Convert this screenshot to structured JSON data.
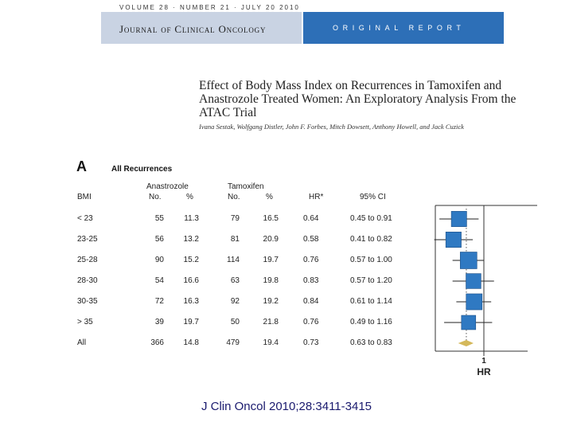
{
  "masthead": {
    "meta": "VOLUME 28 · NUMBER 21 · JULY 20 2010",
    "journal": "Journal of Clinical Oncology",
    "section": "ORIGINAL REPORT",
    "colors": {
      "journal_box": "#c9d3e3",
      "report_box": "#2d6fb7"
    }
  },
  "article": {
    "title": "Effect of Body Mass Index on Recurrences in Tamoxifen and Anastrozole Treated Women: An Exploratory Analysis From the ATAC Trial",
    "authors": "Ivana Sestak, Wolfgang Distler, John F. Forbes, Mitch Dowsett, Anthony Howell, and Jack Cuzick"
  },
  "figure": {
    "panel": "A",
    "panel_title": "All Recurrences",
    "group_a": "Anastrozole",
    "group_b": "Tamoxifen",
    "headers": {
      "bmi": "BMI",
      "no_a": "No.",
      "pct_a": "%",
      "no_b": "No.",
      "pct_b": "%",
      "hr": "HR*",
      "ci": "95% CI"
    },
    "rows": [
      {
        "bmi": "< 23",
        "no_a": "55",
        "pct_a": "11.3",
        "no_b": "79",
        "pct_b": "16.5",
        "hr": "0.64",
        "ci": "0.45 to 0.91"
      },
      {
        "bmi": "23-25",
        "no_a": "56",
        "pct_a": "13.2",
        "no_b": "81",
        "pct_b": "20.9",
        "hr": "0.58",
        "ci": "0.41 to 0.82"
      },
      {
        "bmi": "25-28",
        "no_a": "90",
        "pct_a": "15.2",
        "no_b": "114",
        "pct_b": "19.7",
        "hr": "0.76",
        "ci": "0.57 to 1.00"
      },
      {
        "bmi": "28-30",
        "no_a": "54",
        "pct_a": "16.6",
        "no_b": "63",
        "pct_b": "19.8",
        "hr": "0.83",
        "ci": "0.57 to 1.20"
      },
      {
        "bmi": "30-35",
        "no_a": "72",
        "pct_a": "16.3",
        "no_b": "92",
        "pct_b": "19.2",
        "hr": "0.84",
        "ci": "0.61 to 1.14"
      },
      {
        "bmi": "> 35",
        "no_a": "39",
        "pct_a": "19.7",
        "no_b": "50",
        "pct_b": "21.8",
        "hr": "0.76",
        "ci": "0.49 to 1.16"
      },
      {
        "bmi": "All",
        "no_a": "366",
        "pct_a": "14.8",
        "no_b": "479",
        "pct_b": "19.4",
        "hr": "0.73",
        "ci": "0.63 to 0.83"
      }
    ],
    "colors": {
      "marker": "#2f79c2",
      "overall": "#d4b85a"
    }
  },
  "chart_data": {
    "type": "scatter",
    "title": "All Recurrences",
    "xlabel": "HR",
    "ylabel": "BMI",
    "x_ticks": [
      "1"
    ],
    "reference_line": 1,
    "categories": [
      "< 23",
      "23-25",
      "25-28",
      "28-30",
      "30-35",
      "> 35",
      "All"
    ],
    "hr": [
      0.64,
      0.58,
      0.76,
      0.83,
      0.84,
      0.76,
      0.73
    ],
    "ci_low": [
      0.45,
      0.41,
      0.57,
      0.57,
      0.61,
      0.49,
      0.63
    ],
    "ci_high": [
      0.91,
      0.82,
      1.0,
      1.2,
      1.14,
      1.16,
      0.83
    ],
    "weights": [
      134,
      137,
      204,
      117,
      164,
      89,
      845
    ]
  },
  "citation": "J Clin Oncol 2010;28:3411-3415"
}
